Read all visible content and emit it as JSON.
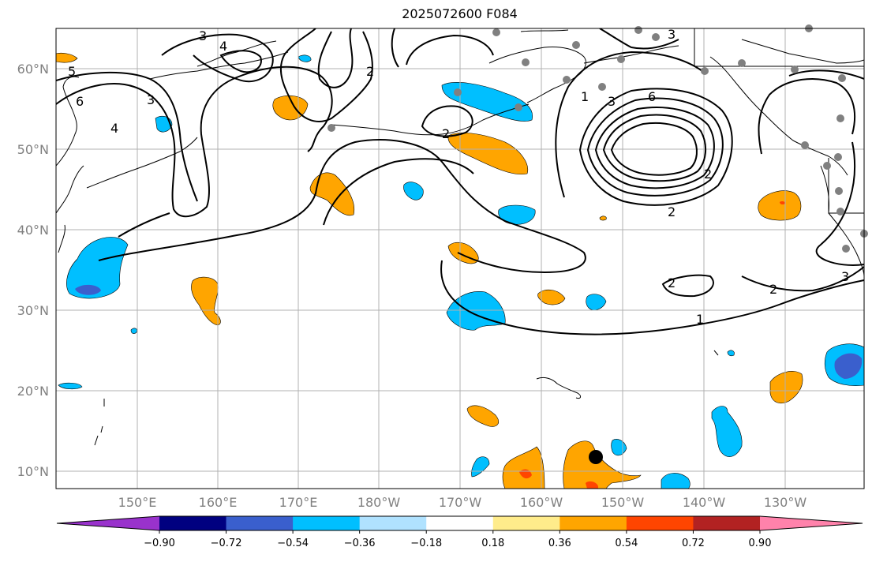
{
  "title": "2025072600 F084",
  "lat_labels": [
    "60°N",
    "50°N",
    "40°N",
    "30°N",
    "20°N",
    "10°N"
  ],
  "lon_labels": [
    "150°E",
    "160°E",
    "170°E",
    "180°W",
    "170°W",
    "160°W",
    "150°W",
    "140°W",
    "130°W"
  ],
  "contour_labels": [
    "3",
    "4",
    "5",
    "6",
    "3",
    "4",
    "2",
    "2",
    "1",
    "3",
    "6",
    "2",
    "2",
    "2",
    "3",
    "2",
    "1",
    "3"
  ],
  "colorbar": {
    "ticks": [
      "−0.90",
      "−0.72",
      "−0.54",
      "−0.36",
      "−0.18",
      "0.18",
      "0.36",
      "0.54",
      "0.72",
      "0.90"
    ],
    "colors": [
      "#9932cc",
      "#000080",
      "#3a5fcd",
      "#00bfff",
      "#b0e2ff",
      "#ffffff",
      "#ffec8b",
      "#ffa500",
      "#ff4500",
      "#b22222",
      "#ff82ab"
    ]
  },
  "colors": {
    "coast": "#000000",
    "grid": "#b0b0b0",
    "station": "#808080",
    "marker": "#000000"
  }
}
